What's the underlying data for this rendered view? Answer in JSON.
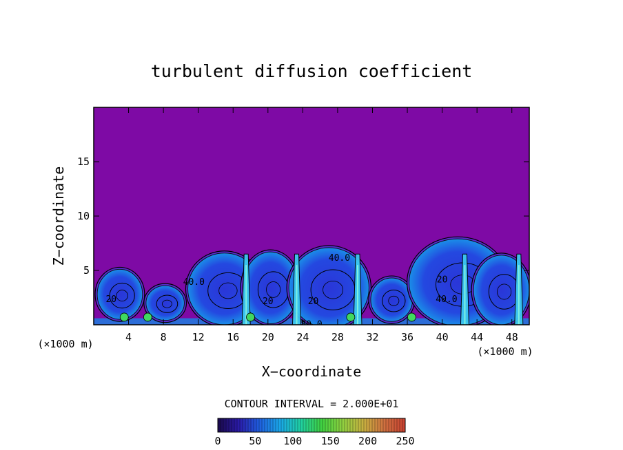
{
  "chart_data": {
    "type": "heatmap",
    "title": "turbulent diffusion coefficient",
    "xlabel": "X−coordinate",
    "ylabel": "Z−coordinate",
    "x_unit_left": "(×1000 m)",
    "x_unit_right": "(×1000 m)",
    "xlim": [
      0,
      50
    ],
    "ylim": [
      0,
      20
    ],
    "xticks": [
      4,
      8,
      12,
      16,
      20,
      24,
      28,
      32,
      36,
      40,
      44,
      48
    ],
    "yticks": [
      5,
      10,
      15
    ],
    "contour_interval_text": "CONTOUR INTERVAL = 2.000E+01",
    "contour_interval": 20,
    "background_value": 0,
    "background_color": "#7e0aa5",
    "cells": [
      {
        "x": 3.0,
        "z": 2.8,
        "rx": 2.6,
        "rz": 2.3,
        "value": 20
      },
      {
        "x": 8.2,
        "z": 2.0,
        "rx": 2.2,
        "rz": 1.6,
        "value": 20
      },
      {
        "x": 15.0,
        "z": 3.3,
        "rx": 4.2,
        "rz": 3.3,
        "value": 20
      },
      {
        "x": 20.3,
        "z": 3.4,
        "rx": 3.2,
        "rz": 3.3,
        "value": 20
      },
      {
        "x": 27.0,
        "z": 3.4,
        "rx": 4.6,
        "rz": 3.7,
        "value": 20
      },
      {
        "x": 34.2,
        "z": 2.3,
        "rx": 2.4,
        "rz": 2.0,
        "value": 20
      },
      {
        "x": 41.8,
        "z": 3.9,
        "rx": 5.6,
        "rz": 4.0,
        "value": 20
      },
      {
        "x": 46.8,
        "z": 3.2,
        "rx": 3.2,
        "rz": 3.2,
        "value": 20
      }
    ],
    "updrafts": [
      {
        "x": 17.5,
        "value": 60
      },
      {
        "x": 23.3,
        "value": 60
      },
      {
        "x": 30.3,
        "value": 60
      },
      {
        "x": 42.6,
        "value": 60
      },
      {
        "x": 48.8,
        "value": 60
      }
    ],
    "contour_labels": [
      "40.0",
      "40.0",
      "80.0",
      "40.0",
      "20",
      "20",
      "20",
      "20"
    ],
    "colorbar": {
      "ticks": [
        "0",
        "50",
        "100",
        "150",
        "200",
        "250"
      ],
      "min": 0,
      "max": 250,
      "stops": [
        "#1a0a4a",
        "#2a1aa8",
        "#1f5fe0",
        "#1aa8e8",
        "#20d0a0",
        "#40d040",
        "#90d040",
        "#c8b040",
        "#d07040",
        "#c84030"
      ]
    }
  }
}
